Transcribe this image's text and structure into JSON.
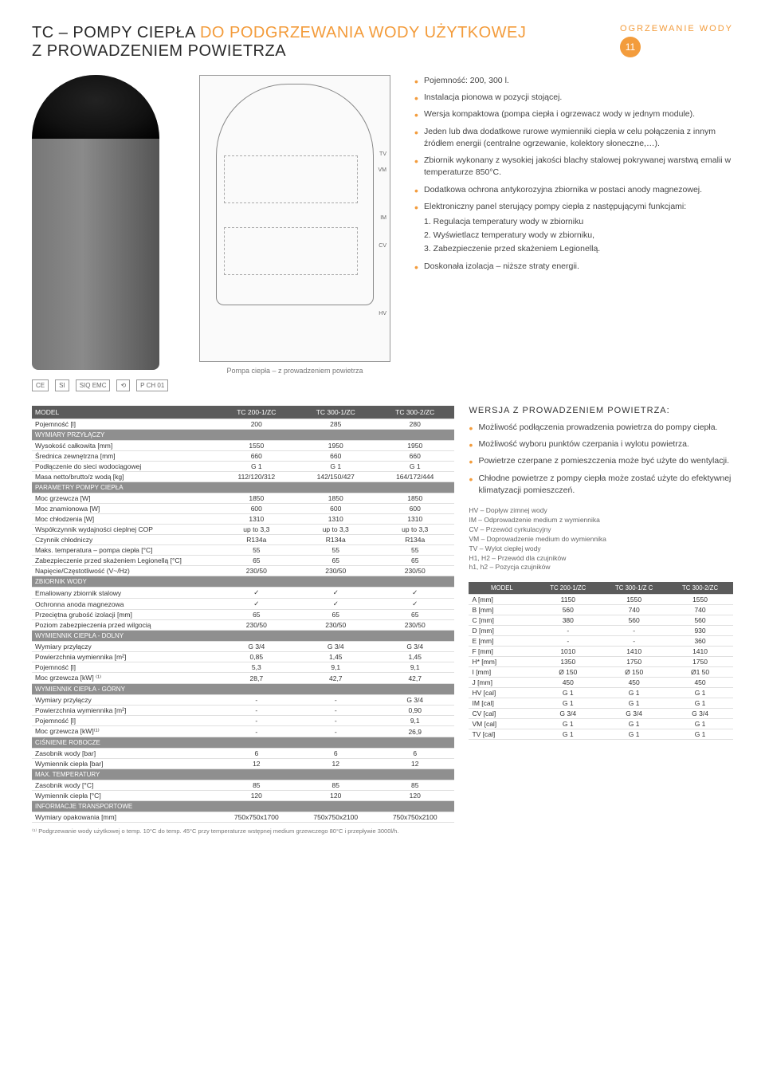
{
  "header": {
    "category": "OGRZEWANIE WODY",
    "page_number": "11",
    "title_dark": "TC – POMPY CIEPŁA",
    "title_orange": "DO PODGRZEWANIA WODY UŻYTKOWEJ",
    "title_line2": "Z PROWADZENIEM POWIETRZA"
  },
  "diagram": {
    "caption": "Pompa ciepła – z prowadzeniem powietrza",
    "labels": {
      "tv": "TV",
      "vm": "VM",
      "im": "IM",
      "cv": "CV",
      "hv": "HV"
    }
  },
  "bullets": [
    "Pojemność: 200, 300 l.",
    "Instalacja pionowa w pozycji stojącej.",
    "Wersja kompaktowa (pompa ciepła i ogrzewacz wody w jednym module).",
    "Jeden lub dwa dodatkowe rurowe wymienniki ciepła w celu połączenia z innym źródłem energii (centralne ogrzewanie, kolektory słoneczne,…).",
    "Zbiornik wykonany z wysokiej jakości blachy stalowej pokrywanej warstwą emalii w temperaturze 850°C.",
    "Dodatkowa ochrona antykorozyjna zbiornika w postaci anody magnezowej.",
    "Elektroniczny panel sterujący pompy ciepła z następującymi funkcjami:",
    "Doskonała izolacja – niższe straty energii."
  ],
  "sub_bullets": [
    "1. Regulacja temperatury wody w zbiorniku",
    "2. Wyświetlacz temperatury wody w zbiorniku,",
    "3. Zabezpieczenie przed skażeniem Legionellą."
  ],
  "specs": {
    "header": {
      "model": "MODEL",
      "c1": "TC 200-1/ZC",
      "c2": "TC 300-1/ZC",
      "c3": "TC 300-2/ZC"
    },
    "rows": [
      {
        "l": "Pojemność [l]",
        "v": [
          "200",
          "285",
          "280"
        ]
      },
      {
        "sub": "WYMIARY PRZYŁĄCZY"
      },
      {
        "l": "Wysokość całkowita [mm]",
        "v": [
          "1550",
          "1950",
          "1950"
        ]
      },
      {
        "l": "Średnica zewnętrzna [mm]",
        "v": [
          "660",
          "660",
          "660"
        ]
      },
      {
        "l": "Podłączenie do sieci wodociągowej",
        "v": [
          "G 1",
          "G 1",
          "G 1"
        ]
      },
      {
        "l": "Masa netto/brutto/z wodą [kg]",
        "v": [
          "112/120/312",
          "142/150/427",
          "164/172/444"
        ]
      },
      {
        "sub": "PARAMETRY POMPY CIEPŁA"
      },
      {
        "l": "Moc grzewcza [W]",
        "v": [
          "1850",
          "1850",
          "1850"
        ]
      },
      {
        "l": "Moc znamionowa [W]",
        "v": [
          "600",
          "600",
          "600"
        ]
      },
      {
        "l": "Moc chłodzenia [W]",
        "v": [
          "1310",
          "1310",
          "1310"
        ]
      },
      {
        "l": "Współczynnik wydajności cieplnej COP",
        "v": [
          "up to 3,3",
          "up to 3,3",
          "up to 3,3"
        ]
      },
      {
        "l": "Czynnik chłodniczy",
        "v": [
          "R134a",
          "R134a",
          "R134a"
        ]
      },
      {
        "l": "Maks. temperatura – pompa ciepła [°C]",
        "v": [
          "55",
          "55",
          "55"
        ]
      },
      {
        "l": "Zabezpieczenie przed skażeniem Legionellą [°C]",
        "v": [
          "65",
          "65",
          "65"
        ]
      },
      {
        "l": "Napięcie/Częstotliwość (V~/Hz)",
        "v": [
          "230/50",
          "230/50",
          "230/50"
        ]
      },
      {
        "sub": "ZBIORNIK WODY"
      },
      {
        "l": "Emaliowany zbiornik stalowy",
        "v": [
          "✓",
          "✓",
          "✓"
        ]
      },
      {
        "l": "Ochronna anoda magnezowa",
        "v": [
          "✓",
          "✓",
          "✓"
        ]
      },
      {
        "l": "Przeciętna grubość izolacji [mm]",
        "v": [
          "65",
          "65",
          "65"
        ]
      },
      {
        "l": "Poziom zabezpieczenia przed wilgocią",
        "v": [
          "230/50",
          "230/50",
          "230/50"
        ]
      },
      {
        "sub": "WYMIENNIK CIEPŁA - DOLNY"
      },
      {
        "l": "Wymiary przyłączy",
        "v": [
          "G 3/4",
          "G 3/4",
          "G 3/4"
        ]
      },
      {
        "l": "Powierzchnia wymiennika [m²]",
        "v": [
          "0,85",
          "1,45",
          "1,45"
        ]
      },
      {
        "l": "Pojemność [l]",
        "v": [
          "5,3",
          "9,1",
          "9,1"
        ]
      },
      {
        "l": "Moc grzewcza [kW] ⁽¹⁾",
        "v": [
          "28,7",
          "42,7",
          "42,7"
        ]
      },
      {
        "sub": "WYMIENNIK CIEPŁA - GÓRNY"
      },
      {
        "l": "Wymiary przyłączy",
        "v": [
          "-",
          "-",
          "G 3/4"
        ]
      },
      {
        "l": "Powierzchnia wymiennika [m²]",
        "v": [
          "-",
          "-",
          "0,90"
        ]
      },
      {
        "l": "Pojemność [l]",
        "v": [
          "-",
          "-",
          "9,1"
        ]
      },
      {
        "l": "Moc grzewcza [kW]⁽¹⁾",
        "v": [
          "-",
          "-",
          "26,9"
        ]
      },
      {
        "sub": "CIŚNIENIE ROBOCZE"
      },
      {
        "l": "Zasobnik wody [bar]",
        "v": [
          "6",
          "6",
          "6"
        ]
      },
      {
        "l": "Wymiennik ciepła [bar]",
        "v": [
          "12",
          "12",
          "12"
        ]
      },
      {
        "sub": "MAX. TEMPERATURY"
      },
      {
        "l": "Zasobnik wody [°C]",
        "v": [
          "85",
          "85",
          "85"
        ]
      },
      {
        "l": "Wymiennik ciepła [°C]",
        "v": [
          "120",
          "120",
          "120"
        ]
      },
      {
        "sub": "INFORMACJE TRANSPORTOWE"
      },
      {
        "l": "Wymiary opakowania [mm]",
        "v": [
          "750x750x1700",
          "750x750x2100",
          "750x750x2100"
        ]
      }
    ]
  },
  "side": {
    "title": "WERSJA Z PROWADZENIEM POWIETRZA:",
    "bullets": [
      "Możliwość podłączenia prowadzenia powietrza do pompy ciepła.",
      "Możliwość wyboru punktów czerpania i wylotu powietrza.",
      "Powietrze czerpane z pomieszczenia może być użyte do wentylacji.",
      "Chłodne powietrze z pompy ciepła może zostać użyte do efektywnej klimatyzacji pomieszczeń."
    ],
    "legend": [
      "HV – Dopływ zimnej wody",
      "IM – Odprowadzenie medium z wymiennika",
      "CV – Przewód cyrkulacyjny",
      "VM – Doprowadzenie medium do wymiennika",
      "TV – Wylot ciepłej wody",
      "H1, H2 – Przewód dla czujników",
      "h1, h2 – Pozycja czujników"
    ]
  },
  "dims": {
    "header": {
      "model": "MODEL",
      "c1": "TC 200-1/ZC",
      "c2": "TC 300-1/Z C",
      "c3": "TC 300-2/ZC"
    },
    "rows": [
      {
        "l": "A [mm]",
        "v": [
          "1150",
          "1550",
          "1550"
        ]
      },
      {
        "l": "B [mm]",
        "v": [
          "560",
          "740",
          "740"
        ]
      },
      {
        "l": "C [mm]",
        "v": [
          "380",
          "560",
          "560"
        ]
      },
      {
        "l": "D [mm]",
        "v": [
          "-",
          "-",
          "930"
        ]
      },
      {
        "l": "E [mm]",
        "v": [
          "-",
          "-",
          "360"
        ]
      },
      {
        "l": "F [mm]",
        "v": [
          "1010",
          "1410",
          "1410"
        ]
      },
      {
        "l": "H* [mm]",
        "v": [
          "1350",
          "1750",
          "1750"
        ]
      },
      {
        "l": "I [mm]",
        "v": [
          "Ø 150",
          "Ø 150",
          "Ø1 50"
        ]
      },
      {
        "l": "J [mm]",
        "v": [
          "450",
          "450",
          "450"
        ]
      },
      {
        "l": "HV [cal]",
        "v": [
          "G 1",
          "G 1",
          "G 1"
        ]
      },
      {
        "l": "IM [cal]",
        "v": [
          "G 1",
          "G 1",
          "G 1"
        ]
      },
      {
        "l": "CV [cal]",
        "v": [
          "G 3/4",
          "G 3/4",
          "G 3/4"
        ]
      },
      {
        "l": "VM [cal]",
        "v": [
          "G 1",
          "G 1",
          "G 1"
        ]
      },
      {
        "l": "TV [cal]",
        "v": [
          "G 1",
          "G 1",
          "G 1"
        ]
      }
    ]
  },
  "footnote": "⁽¹⁾ Podgrzewanie wody użytkowej o temp. 10°C do temp. 45°C przy temperaturze wstępnej medium grzewczego 80°C i przepływie 3000l/h.",
  "certs": [
    "CE",
    "SI",
    "SIQ EMC",
    "⟲",
    "P CH 01"
  ]
}
